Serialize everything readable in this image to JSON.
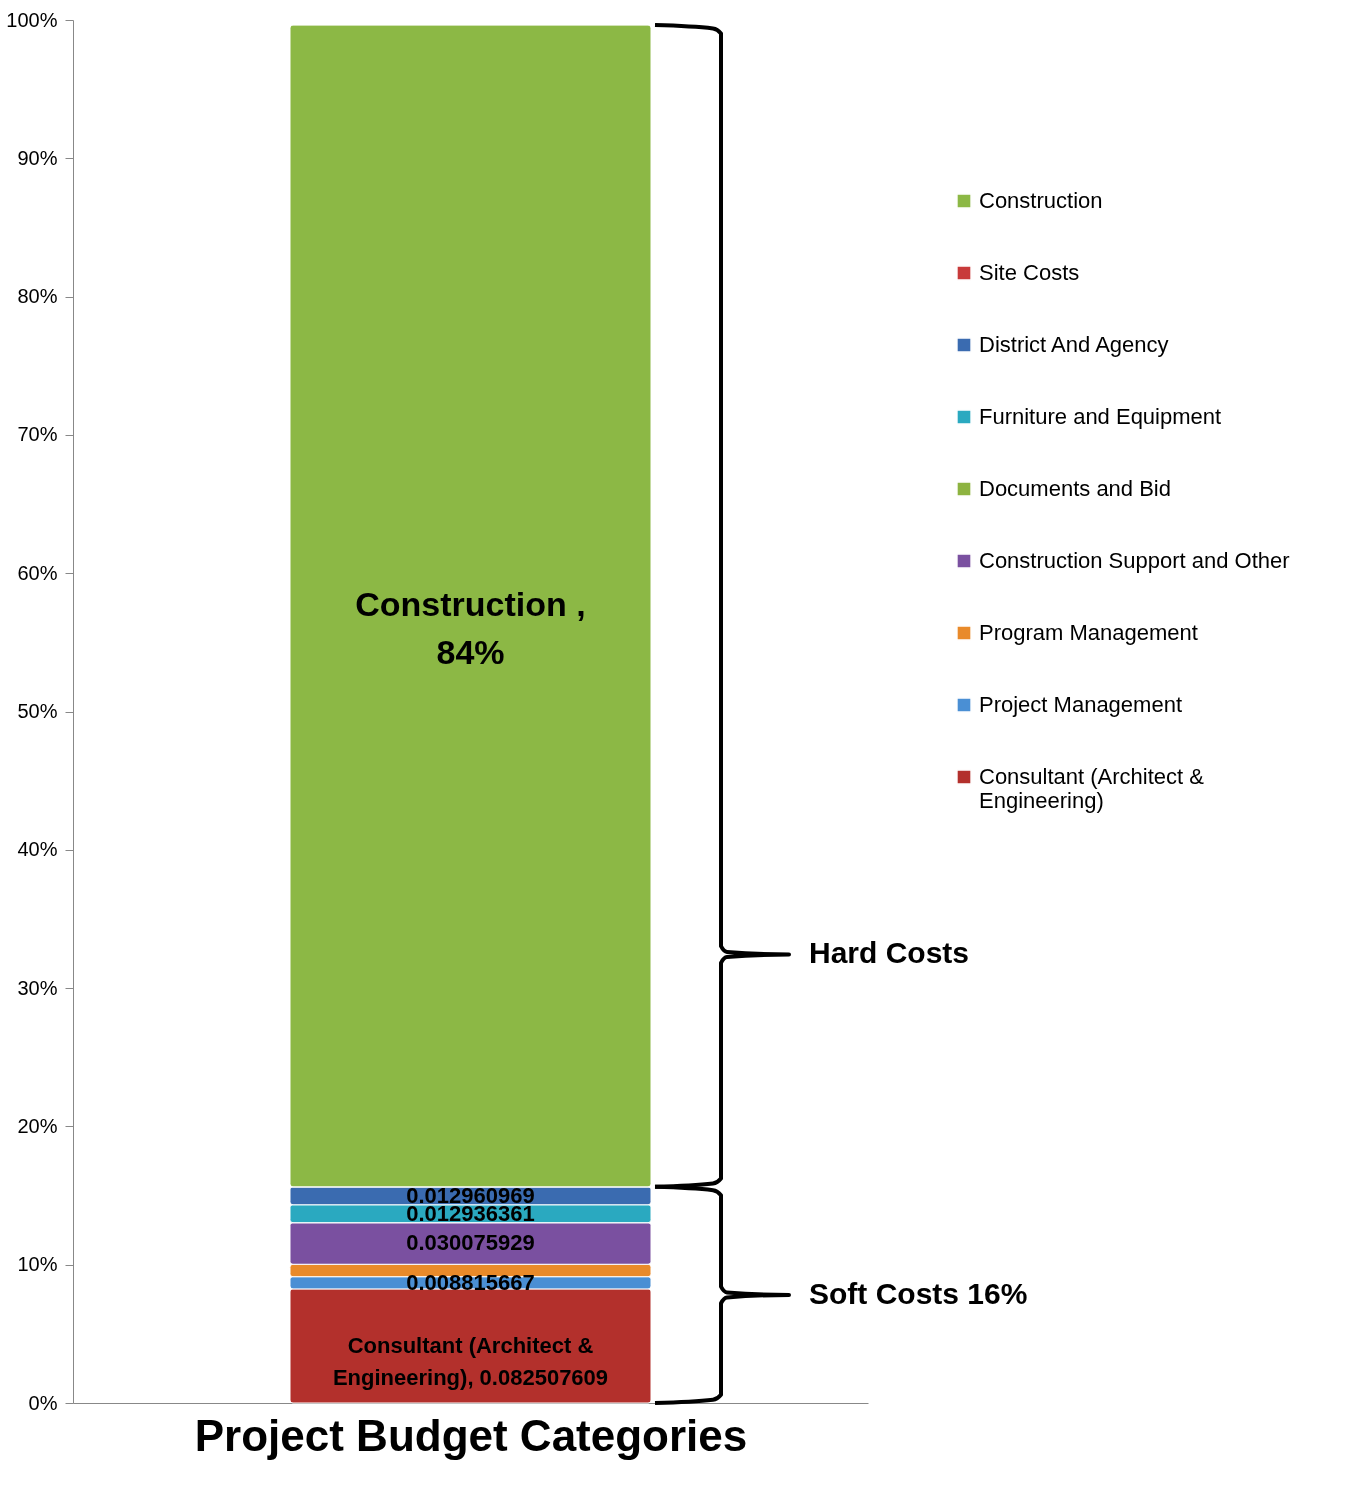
{
  "chart_data": {
    "type": "bar",
    "stacked": true,
    "xlabel": "Project Budget Categories",
    "categories": [
      null
    ],
    "series": [
      {
        "name": "Consultant  (Architect & Engineering)",
        "color": "#b3302c",
        "values": [
          0.082507609
        ],
        "value_labels": [
          "Consultant  (Architect & Engineering), 0.082507609"
        ]
      },
      {
        "name": "Project Management",
        "color": "#4a8fd4",
        "values": [
          0.008815667
        ],
        "value_labels": [
          "0.008815667"
        ]
      },
      {
        "name": "Program Management",
        "color": "#e98a2a",
        "values": [
          0.009
        ]
      },
      {
        "name": "Construction Support and Other",
        "color": "#7a50a0",
        "values": [
          0.030075929
        ],
        "value_labels": [
          "0.030075929"
        ]
      },
      {
        "name": "Documents and Bid",
        "color": "#8db340",
        "values": [
          0
        ]
      },
      {
        "name": "Furniture and Equipment",
        "color": "#2aa9c0",
        "values": [
          0.012936361
        ],
        "value_labels": [
          "0.012936361"
        ]
      },
      {
        "name": "District And Agency",
        "color": "#3a6bb0",
        "values": [
          0.012960969
        ],
        "value_labels": [
          "0.012960969"
        ]
      },
      {
        "name": "Site Costs",
        "color": "#c83a3a",
        "values": [
          0
        ]
      },
      {
        "name": "Construction",
        "color": "#8cb845",
        "values": [
          0.84
        ],
        "value_labels": [
          "Construction , 84%"
        ]
      }
    ],
    "ylim": [
      0,
      1
    ],
    "yticks": [
      {
        "value": 0,
        "label": "0%"
      },
      {
        "value": 0.1,
        "label": "10%"
      },
      {
        "value": 0.2,
        "label": "20%"
      },
      {
        "value": 0.3,
        "label": "30%"
      },
      {
        "value": 0.4,
        "label": "40%"
      },
      {
        "value": 0.5,
        "label": "50%"
      },
      {
        "value": 0.6,
        "label": "60%"
      },
      {
        "value": 0.7,
        "label": "70%"
      },
      {
        "value": 0.8,
        "label": "80%"
      },
      {
        "value": 0.9,
        "label": "90%"
      },
      {
        "value": 1,
        "label": "100%"
      }
    ],
    "annotations": [
      "Hard Costs",
      "Soft Costs 16%"
    ],
    "grid": false,
    "legend": "right"
  }
}
